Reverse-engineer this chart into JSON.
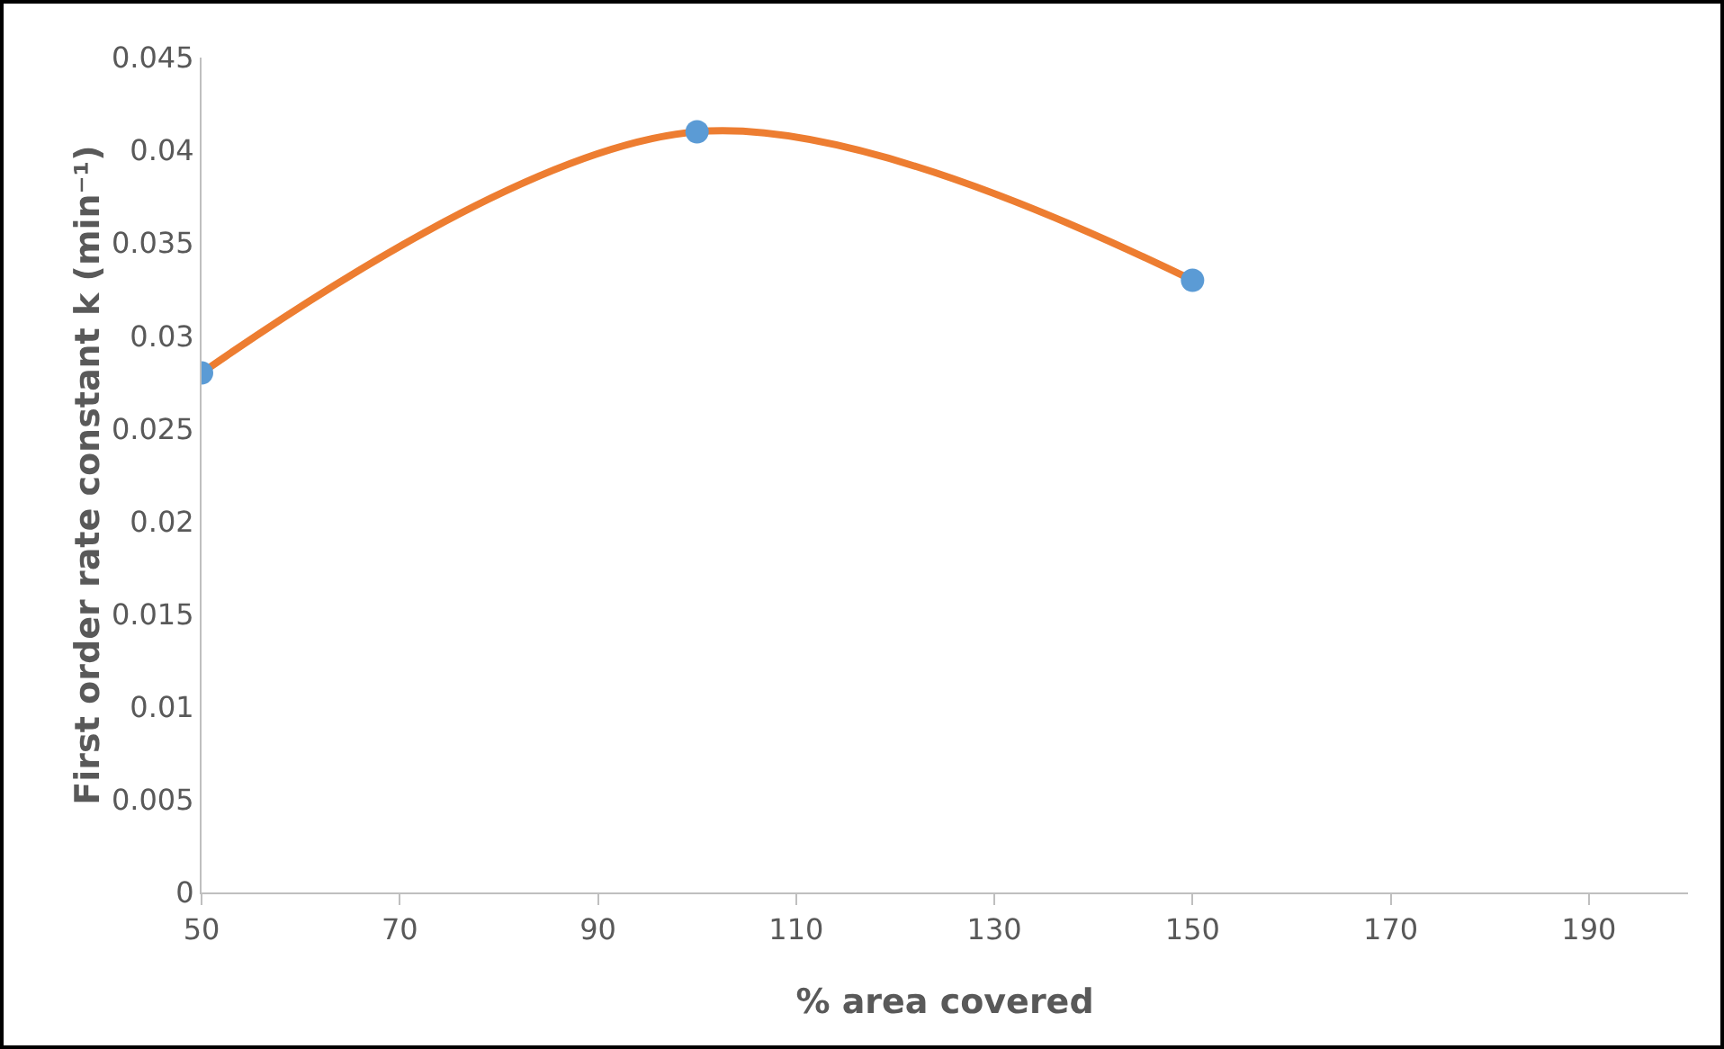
{
  "chart_data": {
    "type": "line",
    "xlabel": "% area covered",
    "ylabel": "First order rate constant k (min⁻¹)",
    "x": [
      50,
      100,
      150
    ],
    "series": [
      {
        "color": "#ed7d31",
        "values": [
          0.028,
          0.041,
          0.033
        ],
        "marker": "none",
        "line_style": "solid"
      },
      {
        "type": "scatter",
        "color": "#5b9bd5",
        "values": [
          0.028,
          0.041,
          0.033
        ],
        "marker": "circle"
      }
    ],
    "xlim": [
      50,
      200
    ],
    "xticks": [
      50,
      70,
      90,
      110,
      130,
      150,
      170,
      190
    ],
    "ylim": [
      0,
      0.045
    ],
    "yticks": [
      0,
      0.005,
      0.01,
      0.015,
      0.02,
      0.025,
      0.03,
      0.035,
      0.04,
      0.045
    ],
    "grid": false
  }
}
